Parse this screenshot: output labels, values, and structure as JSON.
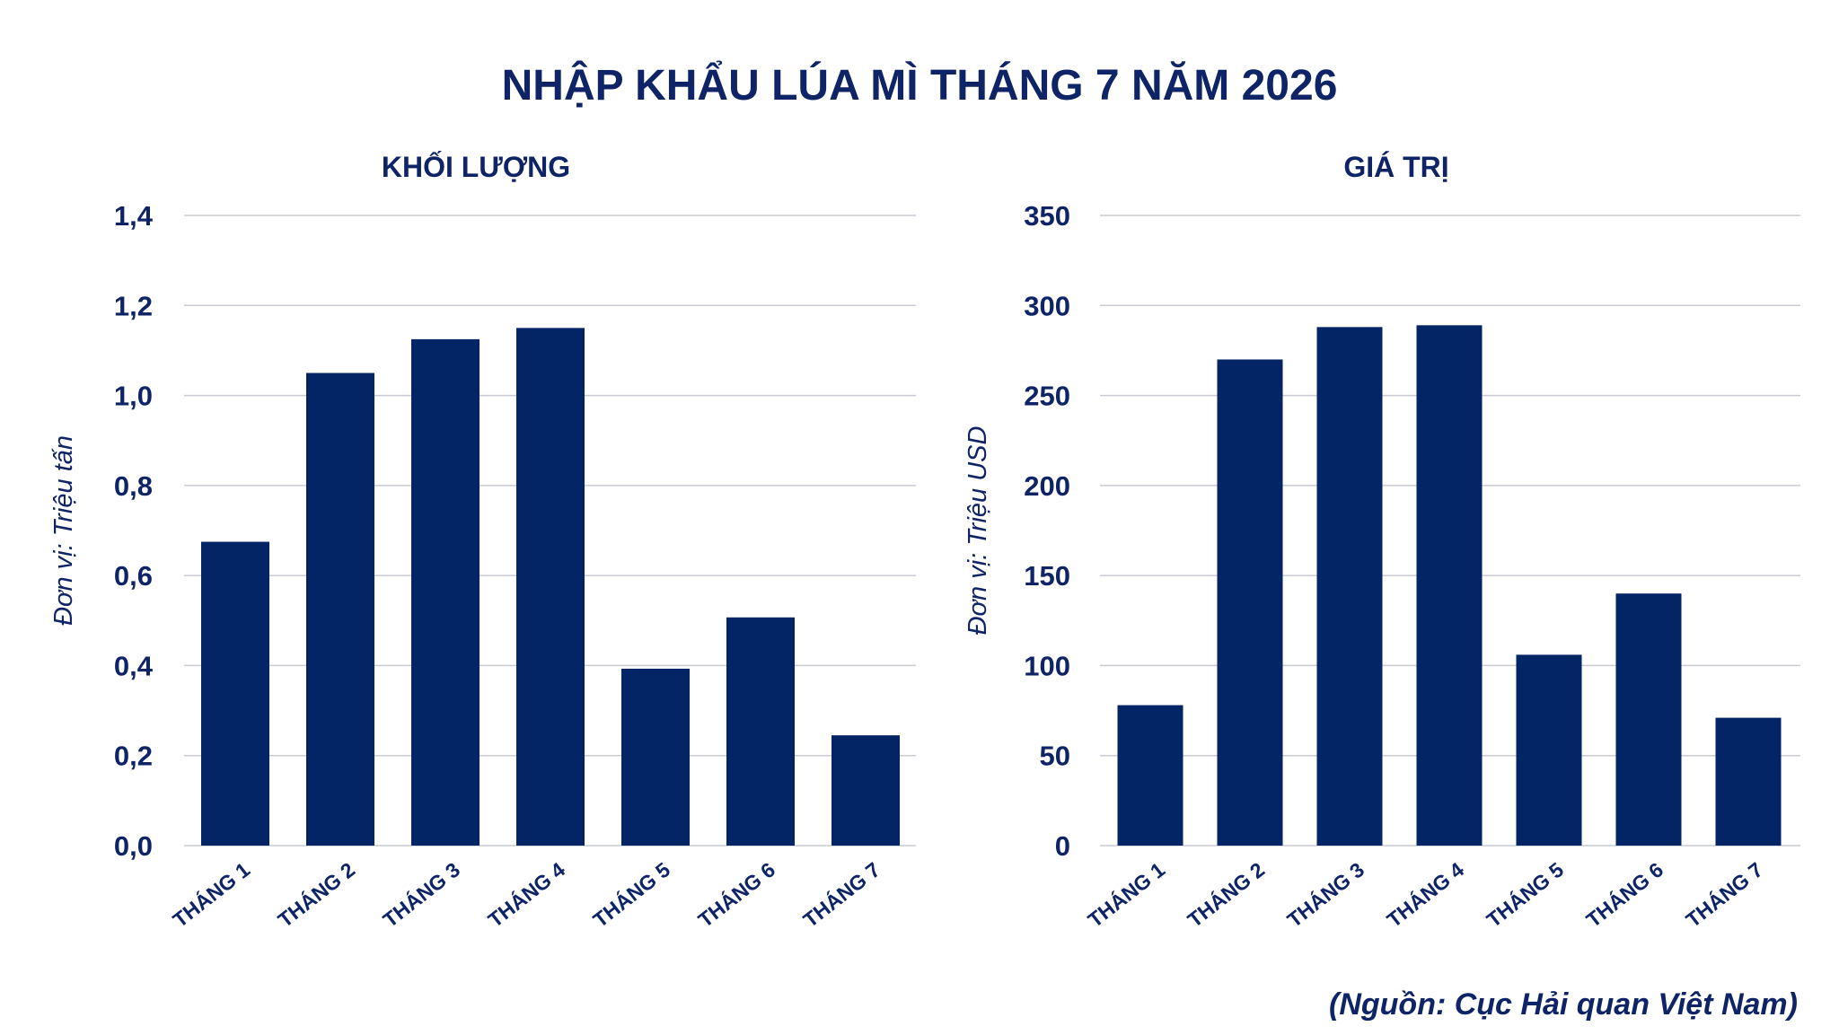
{
  "title": "NHẬP KHẨU LÚA MÌ THÁNG 7 NĂM 2026",
  "source": "(Nguồn: Cục Hải quan Việt Nam)",
  "colors": {
    "bar": "#032566",
    "text": "#0e2466",
    "grid": "#c9cbd6"
  },
  "chart_data": [
    {
      "type": "bar",
      "title": "KHỐI LƯỢNG",
      "ylabel": "Đơn vị: Triệu tấn",
      "xlabel": "",
      "categories": [
        "THÁNG 1",
        "THÁNG 2",
        "THÁNG 3",
        "THÁNG 4",
        "THÁNG 5",
        "THÁNG 6",
        "THÁNG 7"
      ],
      "values": [
        0.675,
        1.05,
        1.125,
        1.15,
        0.393,
        0.507,
        0.245
      ],
      "ylim": [
        0,
        1.4
      ],
      "yticks": [
        "0,0",
        "0,2",
        "0,4",
        "0,6",
        "0,8",
        "1,0",
        "1,2",
        "1,4"
      ],
      "grid": true
    },
    {
      "type": "bar",
      "title": "GIÁ TRỊ",
      "ylabel": "Đơn vị: Triệu USD",
      "xlabel": "",
      "categories": [
        "THÁNG 1",
        "THÁNG 2",
        "THÁNG 3",
        "THÁNG 4",
        "THÁNG 5",
        "THÁNG 6",
        "THÁNG 7"
      ],
      "values": [
        78,
        270,
        288,
        289,
        106,
        140,
        71
      ],
      "ylim": [
        0,
        350
      ],
      "yticks": [
        "0",
        "50",
        "100",
        "150",
        "200",
        "250",
        "300",
        "350"
      ],
      "grid": true
    }
  ]
}
